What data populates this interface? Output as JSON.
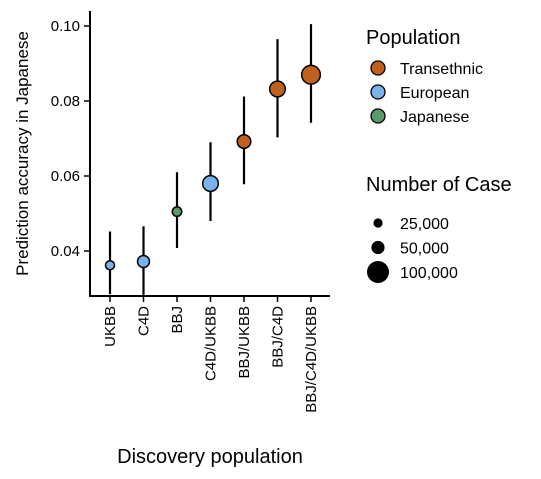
{
  "chart_data": {
    "type": "scatter",
    "xlabel": "Discovery population",
    "ylabel": "Prediction accuracy in Japanese",
    "ylim": [
      0.028,
      0.104
    ],
    "yticks": [
      0.04,
      0.06,
      0.08,
      0.1
    ],
    "ytick_labels": [
      "0.04",
      "0.06",
      "0.08",
      "0.10"
    ],
    "grid": false,
    "categories": [
      "UKBB",
      "C4D",
      "BBJ",
      "C4D/UKBB",
      "BBJ/UKBB",
      "BBJ/C4D",
      "BBJ/C4D/UKBB"
    ],
    "points": [
      {
        "category": "UKBB",
        "y": 0.0362,
        "lower": 0.0285,
        "upper": 0.0452,
        "population": "European",
        "cases": 20000
      },
      {
        "category": "C4D",
        "y": 0.0372,
        "lower": 0.0283,
        "upper": 0.0466,
        "population": "European",
        "cases": 35000
      },
      {
        "category": "BBJ",
        "y": 0.0505,
        "lower": 0.0408,
        "upper": 0.061,
        "population": "Japanese",
        "cases": 22000
      },
      {
        "category": "C4D/UKBB",
        "y": 0.058,
        "lower": 0.048,
        "upper": 0.069,
        "population": "European",
        "cases": 60000
      },
      {
        "category": "BBJ/UKBB",
        "y": 0.0692,
        "lower": 0.0578,
        "upper": 0.0812,
        "population": "Transethnic",
        "cases": 45000
      },
      {
        "category": "BBJ/C4D",
        "y": 0.0832,
        "lower": 0.0703,
        "upper": 0.0965,
        "population": "Transethnic",
        "cases": 60000
      },
      {
        "category": "BBJ/C4D/UKBB",
        "y": 0.087,
        "lower": 0.0742,
        "upper": 0.1005,
        "population": "Transethnic",
        "cases": 85000
      }
    ],
    "legend": {
      "placement": "right",
      "population": {
        "title": "Population",
        "entries": [
          {
            "label": "Transethnic",
            "color": "#C0601F"
          },
          {
            "label": "European",
            "color": "#79B3EA"
          },
          {
            "label": "Japanese",
            "color": "#5A9A6A"
          }
        ]
      },
      "size": {
        "title": "Number of Case",
        "entries": [
          {
            "label": "25,000",
            "value": 25000
          },
          {
            "label": "50,000",
            "value": 50000
          },
          {
            "label": "100,000",
            "value": 100000
          }
        ]
      }
    }
  }
}
